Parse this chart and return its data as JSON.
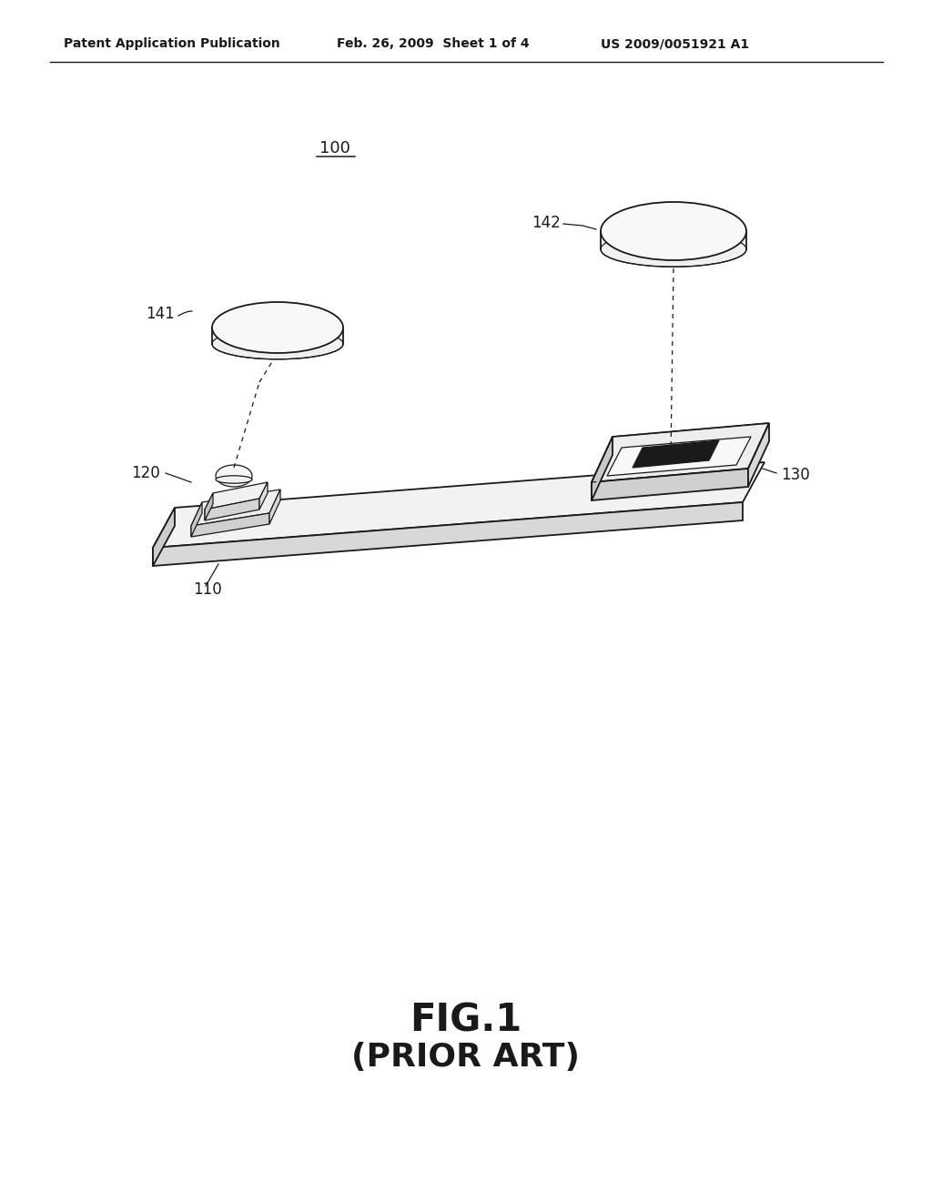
{
  "bg_color": "#ffffff",
  "line_color": "#1a1a1a",
  "fig_width": 10.24,
  "fig_height": 13.2,
  "header_left": "Patent Application Publication",
  "header_mid": "Feb. 26, 2009  Sheet 1 of 4",
  "header_right": "US 2009/0051921 A1",
  "fig_label": "FIG.1",
  "fig_sublabel": "(PRIOR ART)",
  "label_100": "100",
  "label_110": "110",
  "label_120": "120",
  "label_130": "130",
  "label_141": "141",
  "label_142": "142"
}
